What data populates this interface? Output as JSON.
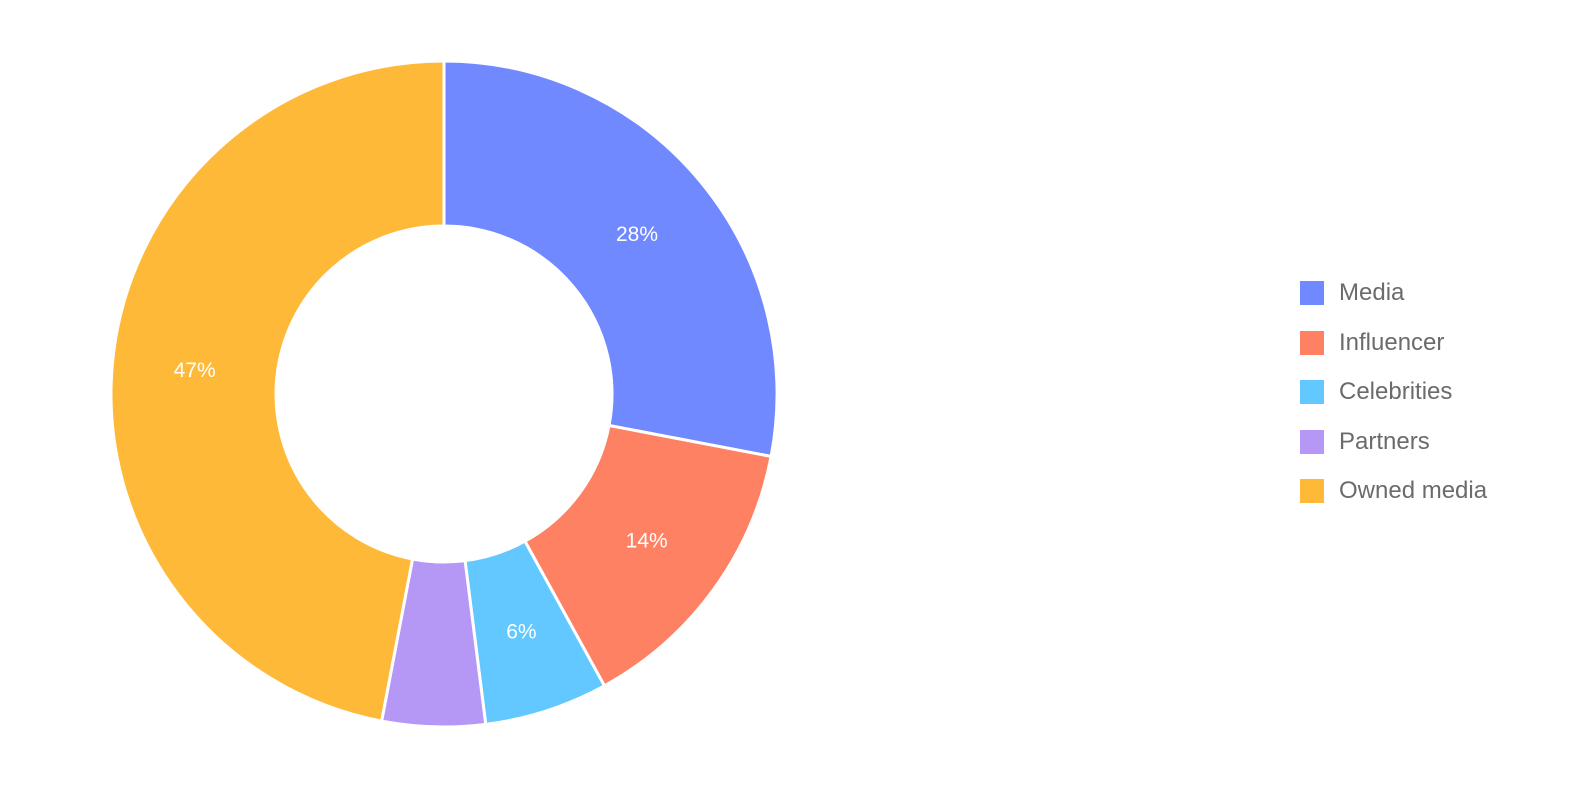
{
  "chart_data": {
    "type": "pie",
    "variant": "donut",
    "title": "",
    "categories": [
      "Media",
      "Influencer",
      "Celebrities",
      "Partners",
      "Owned media"
    ],
    "values": [
      28,
      14,
      6,
      5,
      47
    ],
    "labels": [
      "28%",
      "14%",
      "6%",
      "",
      "47%"
    ],
    "colors": [
      "#7189FF",
      "#FF8163",
      "#63C8FF",
      "#B597F5",
      "#FFB938"
    ],
    "legend_position": "right",
    "start_angle": "top, clockwise"
  },
  "legend": {
    "items": [
      {
        "label": "Media",
        "color": "#7189FF"
      },
      {
        "label": "Influencer",
        "color": "#FF8163"
      },
      {
        "label": "Celebrities",
        "color": "#63C8FF"
      },
      {
        "label": "Partners",
        "color": "#B597F5"
      },
      {
        "label": "Owned media",
        "color": "#FFB938"
      }
    ]
  }
}
